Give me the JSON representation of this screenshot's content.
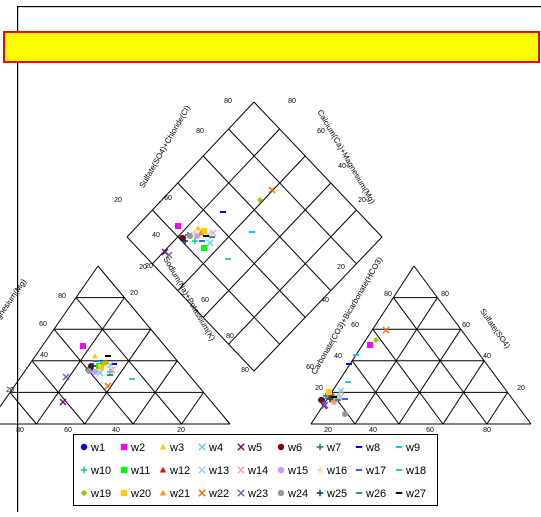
{
  "chart_data": {
    "type": "scatter",
    "subtype": "piper-diagram",
    "title": "",
    "title_bar_color": "#ffff00",
    "title_bar_border": "#ff0000",
    "diamond_labels": {
      "left": "Sulfate(SO4)+Chloride(Cl)",
      "right": "Calcium(Ca)+Magnesium(Mg)",
      "lower_left": "Sodium(Na)+Potassium(K)",
      "lower_right": "Carbonate(CO3)+Bicarbonate(HCO3)"
    },
    "cation_label": "Magnesium(Mg)",
    "anion_label": "Sulfate(SO4)",
    "ticks": {
      "diamond_left": [
        "20",
        "40",
        "60",
        "80"
      ],
      "diamond_right": [
        "80",
        "60",
        "40",
        "20"
      ],
      "cation_left": [
        "80",
        "60",
        "40",
        "20"
      ],
      "cation_right": [
        "20"
      ],
      "cation_bottom": [
        "80",
        "60",
        "40",
        "20"
      ],
      "anion_left": [
        "20",
        "40",
        "60",
        "80"
      ],
      "anion_right": [
        "80",
        "60",
        "40",
        "20"
      ],
      "anion_bottom": [
        "20",
        "40",
        "60",
        "80"
      ]
    },
    "series": [
      {
        "name": "w1",
        "marker": "circle",
        "color": "#0000ff"
      },
      {
        "name": "w2",
        "marker": "square",
        "color": "#ff00ff"
      },
      {
        "name": "w3",
        "marker": "triangle",
        "color": "#ffcc00"
      },
      {
        "name": "w4",
        "marker": "x",
        "color": "#66ccff"
      },
      {
        "name": "w5",
        "marker": "x",
        "color": "#800080"
      },
      {
        "name": "w6",
        "marker": "circle",
        "color": "#800000"
      },
      {
        "name": "w7",
        "marker": "plus",
        "color": "#008080"
      },
      {
        "name": "w8",
        "marker": "dash",
        "color": "#0000ff"
      },
      {
        "name": "w9",
        "marker": "dash",
        "color": "#00ccff"
      },
      {
        "name": "w10",
        "marker": "plus",
        "color": "#00cc99"
      },
      {
        "name": "w11",
        "marker": "square",
        "color": "#00ff00"
      },
      {
        "name": "w12",
        "marker": "triangle",
        "color": "#ff0000"
      },
      {
        "name": "w13",
        "marker": "x",
        "color": "#99ccff"
      },
      {
        "name": "w14",
        "marker": "x",
        "color": "#ff99cc"
      },
      {
        "name": "w15",
        "marker": "circle",
        "color": "#cc99ff"
      },
      {
        "name": "w16",
        "marker": "plus",
        "color": "#ffcc99"
      },
      {
        "name": "w17",
        "marker": "dash",
        "color": "#3366ff"
      },
      {
        "name": "w18",
        "marker": "dash",
        "color": "#33cccc"
      },
      {
        "name": "w19",
        "marker": "diamond",
        "color": "#99cc00"
      },
      {
        "name": "w20",
        "marker": "square",
        "color": "#ffcc00"
      },
      {
        "name": "w21",
        "marker": "triangle",
        "color": "#ff9900"
      },
      {
        "name": "w22",
        "marker": "x",
        "color": "#ff6600"
      },
      {
        "name": "w23",
        "marker": "x",
        "color": "#666699"
      },
      {
        "name": "w24",
        "marker": "circle",
        "color": "#969696"
      },
      {
        "name": "w25",
        "marker": "plus",
        "color": "#003366"
      },
      {
        "name": "w26",
        "marker": "dash",
        "color": "#339966"
      },
      {
        "name": "w27",
        "marker": "dash",
        "color": "#000000"
      }
    ]
  }
}
